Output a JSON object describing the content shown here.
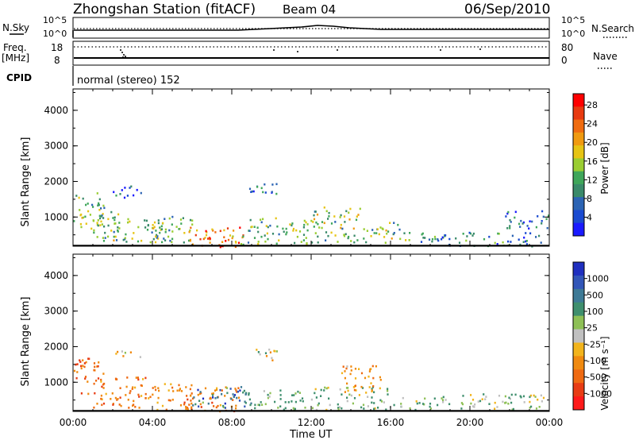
{
  "header": {
    "station": "Zhongshan Station (fitACF)",
    "beam": "Beam 04",
    "date": "06/Sep/2010"
  },
  "params": {
    "nsky_label": "N.Sky",
    "nsearch_label": "N.Search",
    "freq_label": "Freq.",
    "freq_unit": "[MHz]",
    "nave_label": "Nave",
    "cpid_label": "CPID",
    "cpid_text": "normal (stereo) 152",
    "noise_ticks_left": [
      "10^5",
      "10^0"
    ],
    "noise_ticks_right": [
      "10^5",
      "10^0"
    ],
    "freq_ticks_left": [
      "18",
      "8"
    ],
    "nave_ticks_right": [
      "80",
      "0"
    ]
  },
  "colors": {
    "power": [
      "#1a1aff",
      "#1a4ad0",
      "#2c64b4",
      "#3a8a6a",
      "#3fa65a",
      "#9acd32",
      "#e6c414",
      "#f09a10",
      "#f06c10",
      "#e83a10",
      "#ff0000"
    ],
    "velocity": [
      "#1f2fbf",
      "#3256b8",
      "#3e7a96",
      "#3f8f6e",
      "#8ec056",
      "#c0c0c0",
      "#f2b41c",
      "#f08a10",
      "#ef6a12",
      "#e83c14",
      "#ff1a1a"
    ]
  },
  "chart_data": [
    {
      "type": "heatmap",
      "panel": "power",
      "ylabel": "Slant Range [km]",
      "y_ticks": [
        "1000",
        "2000",
        "3000",
        "4000"
      ],
      "ylim": [
        180,
        4600
      ],
      "xlim": [
        0,
        24
      ],
      "colorbar": {
        "label": "Power [dB]",
        "ticks": [
          "4",
          "8",
          "12",
          "16",
          "20",
          "24",
          "28"
        ],
        "range": [
          0,
          30
        ]
      },
      "regions": [
        {
          "t": [
            0.0,
            1.5
          ],
          "r": [
            600,
            1700
          ],
          "v": 14
        },
        {
          "t": [
            1.0,
            2.5
          ],
          "r": [
            350,
            1300
          ],
          "v": 11
        },
        {
          "t": [
            2.0,
            4.5
          ],
          "r": [
            300,
            1000
          ],
          "v": 13
        },
        {
          "t": [
            4.0,
            6.0
          ],
          "r": [
            300,
            1100
          ],
          "v": 12
        },
        {
          "t": [
            5.8,
            8.6
          ],
          "r": [
            180,
            750
          ],
          "v": 23
        },
        {
          "t": [
            6.2,
            7.8
          ],
          "r": [
            180,
            450
          ],
          "v": 28
        },
        {
          "t": [
            8.5,
            12.0
          ],
          "r": [
            250,
            1000
          ],
          "v": 12
        },
        {
          "t": [
            12.0,
            14.5
          ],
          "r": [
            300,
            1300
          ],
          "v": 14
        },
        {
          "t": [
            14.5,
            16.5
          ],
          "r": [
            300,
            900
          ],
          "v": 13
        },
        {
          "t": [
            16.5,
            18.5
          ],
          "r": [
            250,
            600
          ],
          "v": 11
        },
        {
          "t": [
            2.0,
            3.5
          ],
          "r": [
            1550,
            1900
          ],
          "v": 6
        },
        {
          "t": [
            8.8,
            10.3
          ],
          "r": [
            1550,
            2000
          ],
          "v": 6
        },
        {
          "t": [
            18.5,
            23.7
          ],
          "r": [
            200,
            600
          ],
          "v": 8
        },
        {
          "t": [
            21.5,
            24.0
          ],
          "r": [
            700,
            1200
          ],
          "v": 6
        }
      ]
    },
    {
      "type": "heatmap",
      "panel": "velocity",
      "ylabel": "Slant Range [km]",
      "xlabel": "Time UT",
      "x_ticks": [
        "00:00",
        "04:00",
        "08:00",
        "12:00",
        "16:00",
        "20:00",
        "00:00"
      ],
      "y_ticks": [
        "1000",
        "2000",
        "3000",
        "4000"
      ],
      "ylim": [
        180,
        4600
      ],
      "xlim": [
        0,
        24
      ],
      "colorbar": {
        "label": "Velocity [m s⁻¹]",
        "ticks": [
          "1000",
          "500",
          "100",
          "25",
          "-25",
          "-100",
          "-500",
          "-1000"
        ]
      },
      "regions": [
        {
          "t": [
            0.0,
            1.5
          ],
          "r": [
            700,
            1700
          ],
          "v": -400
        },
        {
          "t": [
            1.0,
            4.0
          ],
          "r": [
            300,
            1200
          ],
          "v": -300
        },
        {
          "t": [
            4.0,
            6.0
          ],
          "r": [
            250,
            1000
          ],
          "v": -200
        },
        {
          "t": [
            5.5,
            8.5
          ],
          "r": [
            200,
            900
          ],
          "v": -300
        },
        {
          "t": [
            6.0,
            9.0
          ],
          "r": [
            300,
            900
          ],
          "v": 600
        },
        {
          "t": [
            8.5,
            12.0
          ],
          "r": [
            250,
            800
          ],
          "v": 150
        },
        {
          "t": [
            12.0,
            16.0
          ],
          "r": [
            250,
            900
          ],
          "v": 80
        },
        {
          "t": [
            13.5,
            15.5
          ],
          "r": [
            700,
            1500
          ],
          "v": -200
        },
        {
          "t": [
            16.0,
            18.0
          ],
          "r": [
            250,
            600
          ],
          "v": 80
        },
        {
          "t": [
            8.8,
            10.3
          ],
          "r": [
            1600,
            1950
          ],
          "v": 0
        },
        {
          "t": [
            2.0,
            3.5
          ],
          "r": [
            1700,
            1900
          ],
          "v": 0
        },
        {
          "t": [
            18.0,
            23.8
          ],
          "r": [
            250,
            700
          ],
          "v": 60
        }
      ]
    }
  ]
}
